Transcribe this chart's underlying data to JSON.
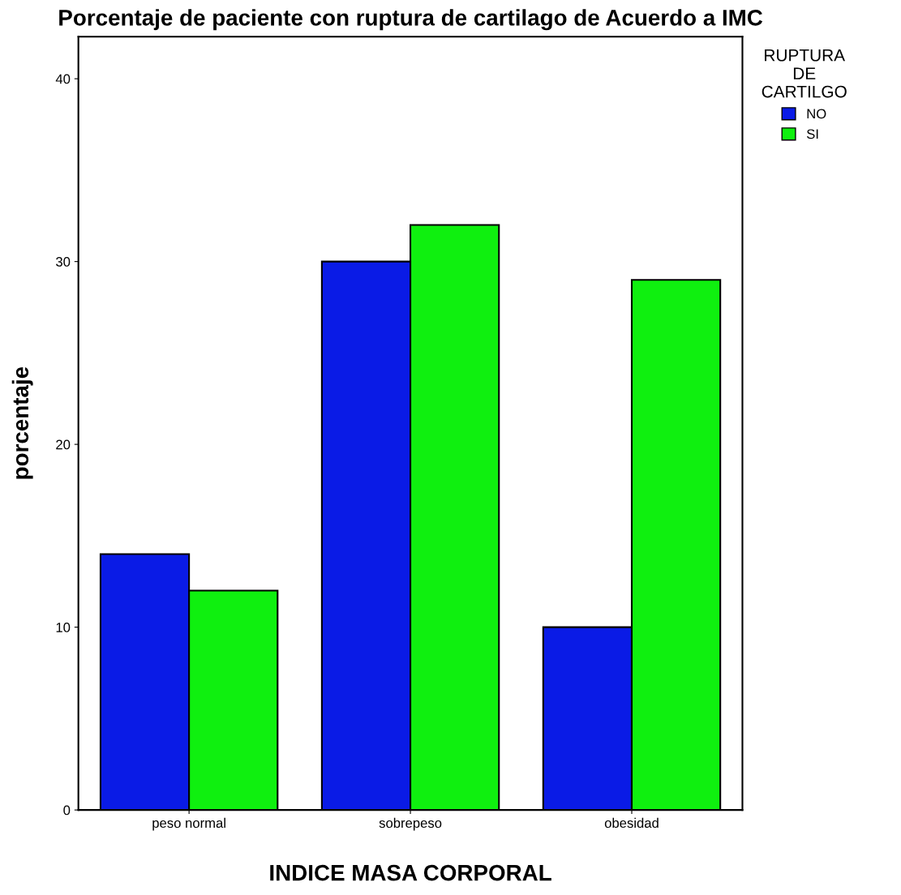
{
  "chart_data": {
    "type": "bar",
    "title": "Porcentaje de paciente con ruptura de cartilago de Acuerdo a IMC",
    "xlabel": "INDICE MASA CORPORAL",
    "ylabel": "porcentaje",
    "legend_title": "RUPTURA\nDE\nCARTILGO",
    "categories": [
      "peso normal",
      "sobrepeso",
      "obesidad"
    ],
    "series": [
      {
        "name": "NO",
        "color": "#0a1be6",
        "values": [
          14,
          30,
          10
        ]
      },
      {
        "name": "SI",
        "color": "#0ff00f",
        "values": [
          12,
          32,
          29
        ]
      }
    ],
    "ylim": [
      0,
      42.3
    ],
    "yticks": [
      0,
      10,
      20,
      30,
      40
    ],
    "grid": false,
    "legend": "right"
  }
}
